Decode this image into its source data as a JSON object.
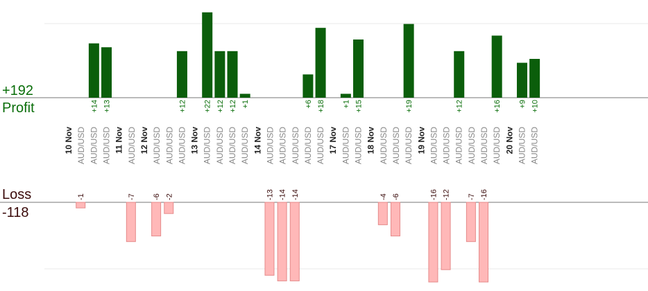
{
  "summary": {
    "profit_total": "+192",
    "profit_label": "Profit",
    "loss_label": "Loss",
    "loss_total": "-118"
  },
  "colors": {
    "profit_bar": "#0b5e0b",
    "profit_text": "#0a6e0a",
    "loss_bar": "#ffb8b8",
    "loss_bar_edge": "#e58a8a",
    "loss_text": "#3a0a0a",
    "grid": "#e8e8e8",
    "axis": "#777777",
    "date_text": "#222222",
    "pair_text": "#888888"
  },
  "chart_data": {
    "type": "bar",
    "title": "",
    "dates": [
      "10 Nov",
      "11 Nov",
      "12 Nov",
      "13 Nov",
      "14 Nov",
      "17 Nov",
      "18 Nov",
      "19 Nov",
      "20 Nov"
    ],
    "trades": [
      {
        "date": "10 Nov",
        "pair": "AUD/USD",
        "value": -1
      },
      {
        "date": "10 Nov",
        "pair": "AUD/USD",
        "value": 14
      },
      {
        "date": "10 Nov",
        "pair": "AUD/USD",
        "value": 13
      },
      {
        "date": "11 Nov",
        "pair": "AUD/USD",
        "value": -7
      },
      {
        "date": "12 Nov",
        "pair": "AUD/USD",
        "value": -6
      },
      {
        "date": "12 Nov",
        "pair": "AUD/USD",
        "value": -2
      },
      {
        "date": "12 Nov",
        "pair": "AUD/USD",
        "value": 12
      },
      {
        "date": "13 Nov",
        "pair": "AUD/USD",
        "value": 22
      },
      {
        "date": "13 Nov",
        "pair": "AUD/USD",
        "value": 12
      },
      {
        "date": "13 Nov",
        "pair": "AUD/USD",
        "value": 12
      },
      {
        "date": "13 Nov",
        "pair": "AUD/USD",
        "value": 1
      },
      {
        "date": "14 Nov",
        "pair": "AUD/USD",
        "value": -13
      },
      {
        "date": "14 Nov",
        "pair": "AUD/USD",
        "value": -14
      },
      {
        "date": "14 Nov",
        "pair": "AUD/USD",
        "value": -14
      },
      {
        "date": "14 Nov",
        "pair": "AUD/USD",
        "value": 6
      },
      {
        "date": "14 Nov",
        "pair": "AUD/USD",
        "value": 18
      },
      {
        "date": "17 Nov",
        "pair": "AUD/USD",
        "value": 1
      },
      {
        "date": "17 Nov",
        "pair": "AUD/USD",
        "value": 15
      },
      {
        "date": "18 Nov",
        "pair": "AUD/USD",
        "value": -4
      },
      {
        "date": "18 Nov",
        "pair": "AUD/USD",
        "value": -6
      },
      {
        "date": "18 Nov",
        "pair": "AUD/USD",
        "value": 19
      },
      {
        "date": "19 Nov",
        "pair": "AUD/USD",
        "value": -16
      },
      {
        "date": "19 Nov",
        "pair": "AUD/USD",
        "value": -12
      },
      {
        "date": "19 Nov",
        "pair": "AUD/USD",
        "value": 12
      },
      {
        "date": "19 Nov",
        "pair": "AUD/USD",
        "value": -7
      },
      {
        "date": "19 Nov",
        "pair": "AUD/USD",
        "value": -16
      },
      {
        "date": "19 Nov",
        "pair": "AUD/USD",
        "value": 16
      },
      {
        "date": "20 Nov",
        "pair": "AUD/USD",
        "value": 9
      },
      {
        "date": "20 Nov",
        "pair": "AUD/USD",
        "value": 10
      }
    ],
    "grid": true,
    "legend": "none"
  }
}
